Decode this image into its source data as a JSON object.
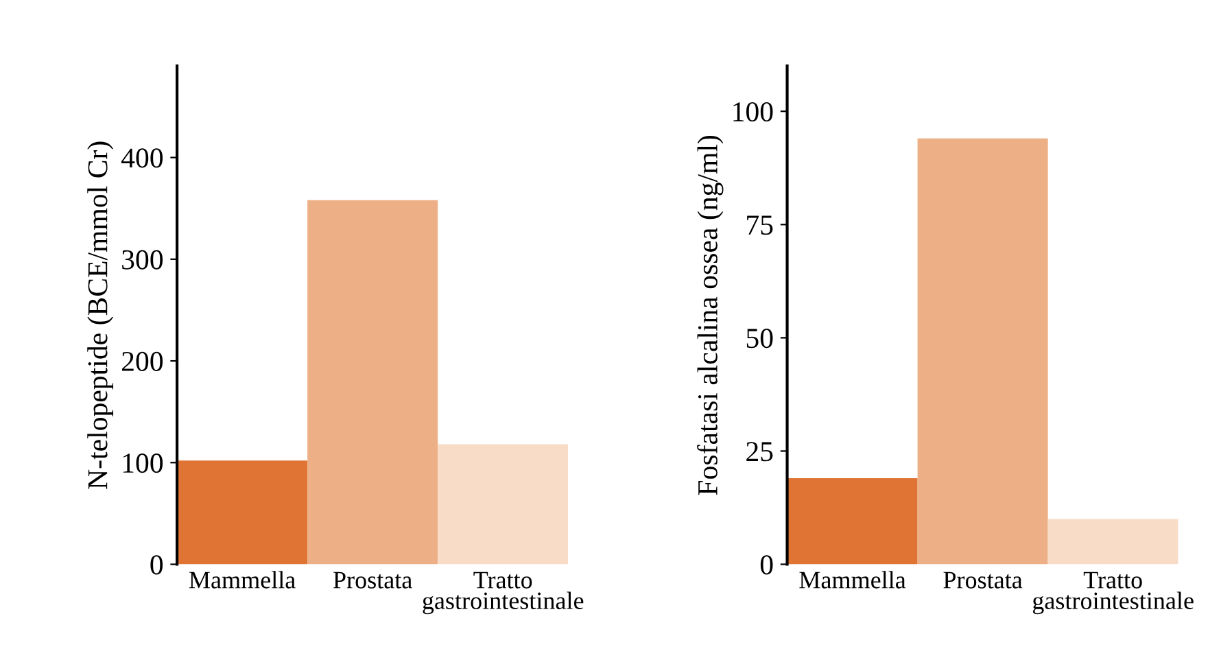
{
  "chart_data": [
    {
      "type": "bar",
      "ylabel": "N-telopeptide (BCE/mmol Cr)",
      "categories": [
        "Mammella",
        "Prostata",
        "Tratto\ngastrointestinale"
      ],
      "values": [
        102,
        358,
        118
      ],
      "colors": [
        "#e07434",
        "#edb086",
        "#f8dcc8"
      ],
      "ylim": [
        0,
        490
      ],
      "yticks": [
        0,
        100,
        200,
        300,
        400
      ],
      "grid": false,
      "legend": false
    },
    {
      "type": "bar",
      "ylabel": "Fosfatasi alcalina ossea (ng/ml)",
      "categories": [
        "Mammella",
        "Prostata",
        "Tratto\ngastrointestinale"
      ],
      "values": [
        19,
        94,
        10
      ],
      "colors": [
        "#e07434",
        "#edb086",
        "#f8dcc8"
      ],
      "ylim": [
        0,
        110
      ],
      "yticks": [
        0,
        25,
        50,
        75,
        100
      ],
      "grid": false,
      "legend": false
    }
  ]
}
